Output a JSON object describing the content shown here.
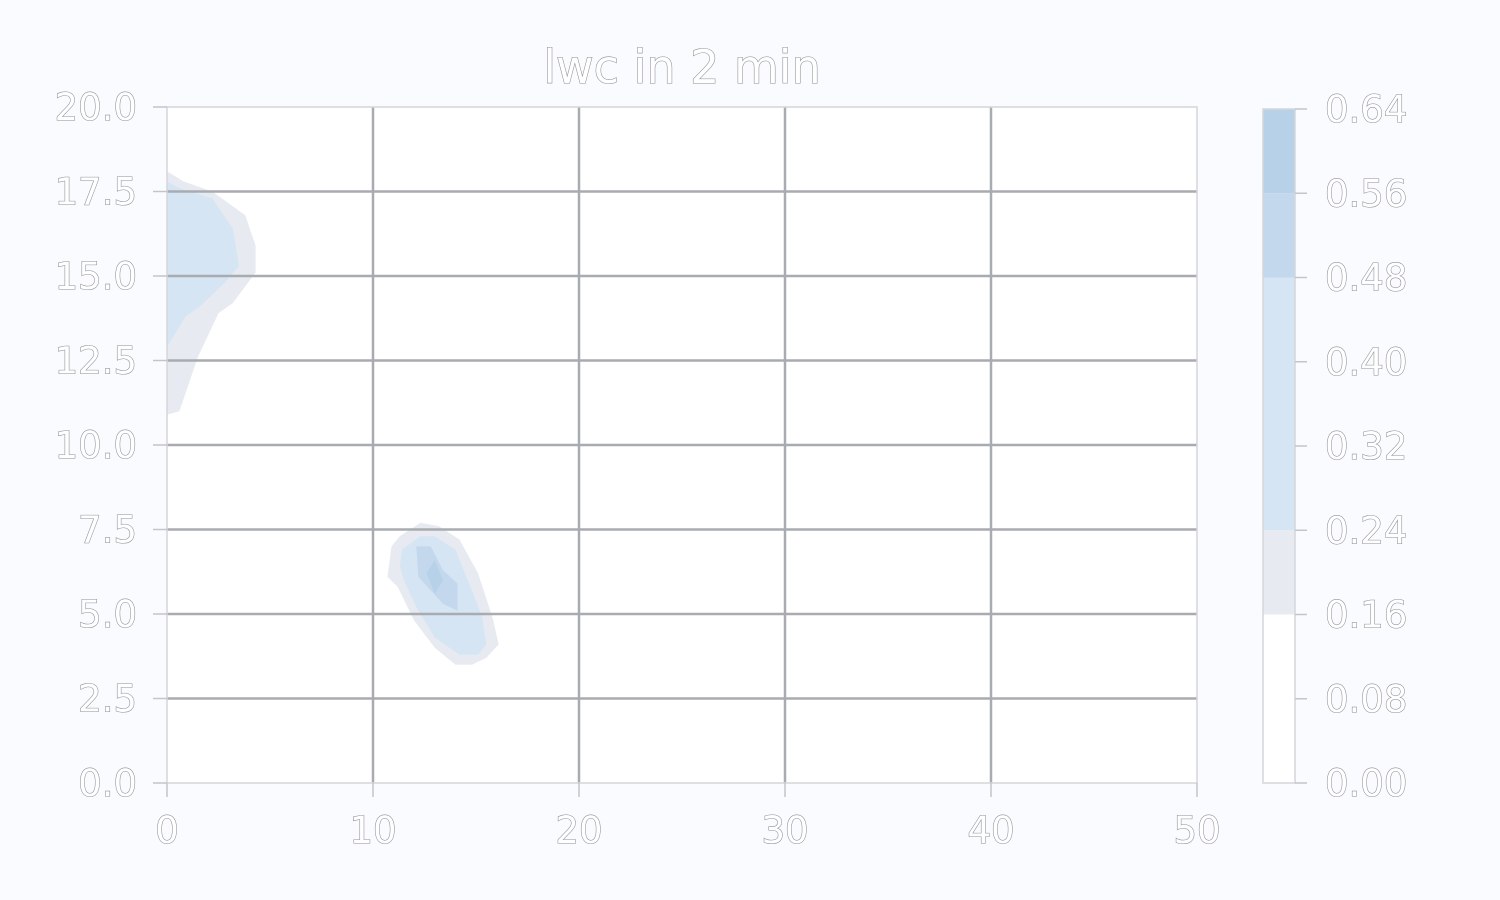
{
  "chart_data": {
    "type": "contour",
    "title": "lwc in 2 min",
    "xlabel": "",
    "ylabel": "",
    "xlim": [
      0,
      50
    ],
    "ylim": [
      0,
      20
    ],
    "grid": true,
    "x_ticks": [
      "0",
      "10",
      "20",
      "30",
      "40",
      "50"
    ],
    "x_tick_values": [
      0,
      10,
      20,
      30,
      40,
      50
    ],
    "y_ticks": [
      "0.0",
      "2.5",
      "5.0",
      "7.5",
      "10.0",
      "12.5",
      "15.0",
      "17.5",
      "20.0"
    ],
    "y_tick_values": [
      0,
      2.5,
      5,
      7.5,
      10,
      12.5,
      15,
      17.5,
      20
    ],
    "colorbar": {
      "levels": [
        0.0,
        0.08,
        0.16,
        0.24,
        0.32,
        0.4,
        0.48,
        0.56,
        0.64
      ],
      "tick_labels": [
        "0.00",
        "0.08",
        "0.16",
        "0.24",
        "0.32",
        "0.40",
        "0.48",
        "0.56",
        "0.64"
      ],
      "bands": [
        {
          "from": 0.0,
          "to": 0.16,
          "color": "#ffffff"
        },
        {
          "from": 0.16,
          "to": 0.24,
          "color": "#e7ebf1"
        },
        {
          "from": 0.24,
          "to": 0.48,
          "color": "#d6e5f4"
        },
        {
          "from": 0.48,
          "to": 0.56,
          "color": "#c3d8ec"
        },
        {
          "from": 0.56,
          "to": 0.64,
          "color": "#b6d1e8"
        }
      ]
    },
    "regions": [
      {
        "name": "upper-left-blob",
        "level_min": 0.16,
        "level_max": 0.24,
        "color": "#e7ebf1",
        "points": [
          [
            0,
            18.1
          ],
          [
            0.8,
            17.8
          ],
          [
            2.2,
            17.5
          ],
          [
            3.8,
            16.8
          ],
          [
            4.3,
            15.9
          ],
          [
            4.3,
            15.1
          ],
          [
            3.2,
            14.2
          ],
          [
            2.5,
            13.9
          ],
          [
            1.5,
            12.6
          ],
          [
            0.6,
            11
          ],
          [
            0,
            10.9
          ]
        ]
      },
      {
        "name": "upper-left-blob",
        "level_min": 0.24,
        "level_max": 0.48,
        "color": "#d6e5f4",
        "points": [
          [
            0,
            17.8
          ],
          [
            0.6,
            17.6
          ],
          [
            2.2,
            17.3
          ],
          [
            3.2,
            16.4
          ],
          [
            3.5,
            15.3
          ],
          [
            2.8,
            14.8
          ],
          [
            1.6,
            14.1
          ],
          [
            0.9,
            13.8
          ],
          [
            0,
            12.9
          ]
        ]
      },
      {
        "name": "lower-center-blob",
        "level_min": 0.16,
        "level_max": 0.24,
        "color": "#e7ebf1",
        "points": [
          [
            11.3,
            7.3
          ],
          [
            12.3,
            7.7
          ],
          [
            13.2,
            7.6
          ],
          [
            14.2,
            7.2
          ],
          [
            15.1,
            6.2
          ],
          [
            15.8,
            4.9
          ],
          [
            16.1,
            4.1
          ],
          [
            15.5,
            3.7
          ],
          [
            14.8,
            3.5
          ],
          [
            14,
            3.5
          ],
          [
            13,
            4
          ],
          [
            12,
            4.8
          ],
          [
            11.2,
            5.8
          ],
          [
            10.7,
            6.1
          ],
          [
            10.9,
            7
          ]
        ]
      },
      {
        "name": "lower-center-blob",
        "level_min": 0.24,
        "level_max": 0.48,
        "color": "#d6e5f4",
        "points": [
          [
            11.4,
            6.9
          ],
          [
            12.3,
            7.3
          ],
          [
            13,
            7.3
          ],
          [
            14,
            6.9
          ],
          [
            14.8,
            5.7
          ],
          [
            15.3,
            4.9
          ],
          [
            15.5,
            4.1
          ],
          [
            15.1,
            3.8
          ],
          [
            14.2,
            3.8
          ],
          [
            13,
            4.3
          ],
          [
            12.1,
            5.2
          ],
          [
            11.5,
            6
          ],
          [
            11.3,
            6.4
          ]
        ]
      },
      {
        "name": "lower-center-blob",
        "level_min": 0.48,
        "level_max": 0.56,
        "color": "#c3d8ec",
        "points": [
          [
            12.1,
            7.0
          ],
          [
            12.8,
            7.0
          ],
          [
            13.4,
            6.3
          ],
          [
            14.1,
            5.9
          ],
          [
            14.1,
            5.1
          ],
          [
            13.4,
            5.3
          ],
          [
            12.2,
            6.1
          ]
        ]
      },
      {
        "name": "lower-center-blob",
        "level_min": 0.56,
        "level_max": 0.64,
        "color": "#b6d1e8",
        "points": [
          [
            12.6,
            6.2
          ],
          [
            13.0,
            6.6
          ],
          [
            13.4,
            6.0
          ],
          [
            13.0,
            5.6
          ]
        ]
      }
    ]
  }
}
